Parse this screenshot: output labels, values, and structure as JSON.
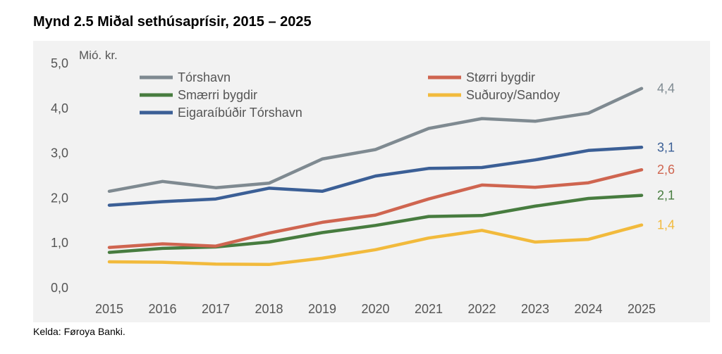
{
  "title": "Mynd 2.5 Miðal sethúsaprísir, 2015 – 2025",
  "source": "Kelda: Føroya Banki.",
  "chart_data": {
    "type": "line",
    "title": "Mynd 2.5 Miðal sethúsaprísir, 2015 – 2025",
    "ylabel": "Mió. kr.",
    "xlabel": "",
    "ylim": [
      0,
      5
    ],
    "yticks": [
      "0,0",
      "1,0",
      "2,0",
      "3,0",
      "4,0",
      "5,0"
    ],
    "x": [
      "2015",
      "2016",
      "2017",
      "2018",
      "2019",
      "2020",
      "2021",
      "2022",
      "2023",
      "2024",
      "2025"
    ],
    "grid": false,
    "series": [
      {
        "name": "Tórshavn",
        "color": "#7f8a91",
        "values": [
          2.15,
          2.37,
          2.23,
          2.33,
          2.87,
          3.08,
          3.55,
          3.77,
          3.71,
          3.89,
          4.44
        ],
        "end_label": "4,4"
      },
      {
        "name": "Størri bygdir",
        "color": "#cf6550",
        "values": [
          0.9,
          0.98,
          0.93,
          1.22,
          1.46,
          1.62,
          1.98,
          2.29,
          2.24,
          2.34,
          2.63
        ],
        "end_label": "2,6"
      },
      {
        "name": "Smærri bygdir",
        "color": "#477c3f",
        "values": [
          0.79,
          0.88,
          0.91,
          1.02,
          1.23,
          1.39,
          1.59,
          1.61,
          1.82,
          1.99,
          2.06
        ],
        "end_label": "2,1"
      },
      {
        "name": "Suðuroy/Sandoy",
        "color": "#f2ba3c",
        "values": [
          0.58,
          0.57,
          0.53,
          0.52,
          0.66,
          0.85,
          1.11,
          1.28,
          1.02,
          1.08,
          1.4
        ],
        "end_label": "1,4"
      },
      {
        "name": "Eigaraíbúðir Tórshavn",
        "color": "#3b5f96",
        "values": [
          1.84,
          1.92,
          1.98,
          2.22,
          2.15,
          2.49,
          2.66,
          2.68,
          2.85,
          3.06,
          3.13
        ],
        "end_label": "3,1"
      }
    ],
    "legend_position": "top-left"
  }
}
